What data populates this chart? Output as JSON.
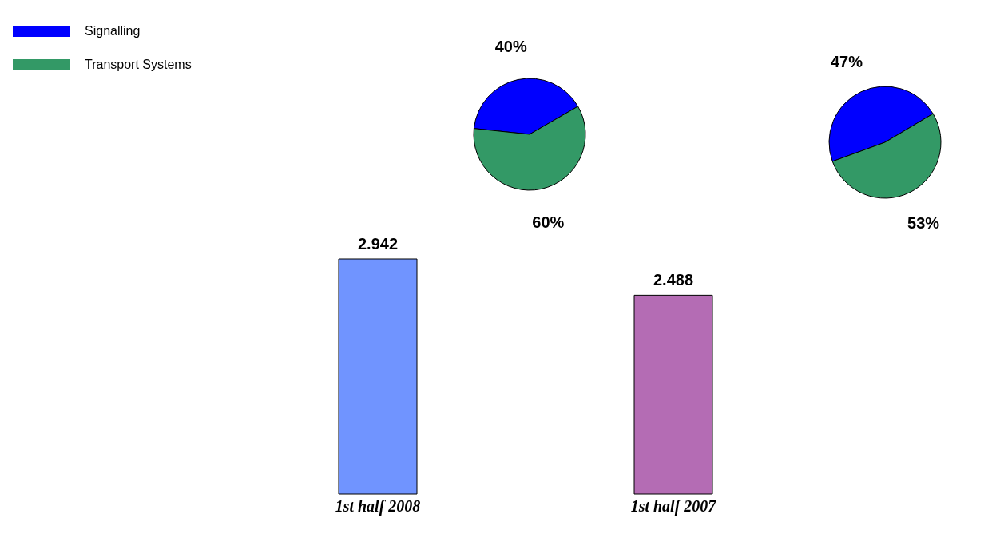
{
  "chart_data": [
    {
      "type": "bar",
      "categories": [
        "1st half 2008",
        "1st half 2007"
      ],
      "values": [
        2.942,
        2.488
      ],
      "colors": [
        "#7094ff",
        "#b46cb4"
      ],
      "data_labels": true
    },
    {
      "type": "pie",
      "categories": [
        "Signalling",
        "Transport Systems"
      ],
      "values": [
        40,
        60
      ],
      "colors": [
        "#0000ff",
        "#339966"
      ],
      "value_labels": [
        "40%",
        "60%"
      ],
      "legend": "top left"
    },
    {
      "type": "pie",
      "categories": [
        null,
        null
      ],
      "values": [
        47,
        53
      ],
      "colors": [
        "#0000ff",
        "#339966"
      ],
      "value_labels": [
        "47%",
        "53%"
      ]
    }
  ]
}
